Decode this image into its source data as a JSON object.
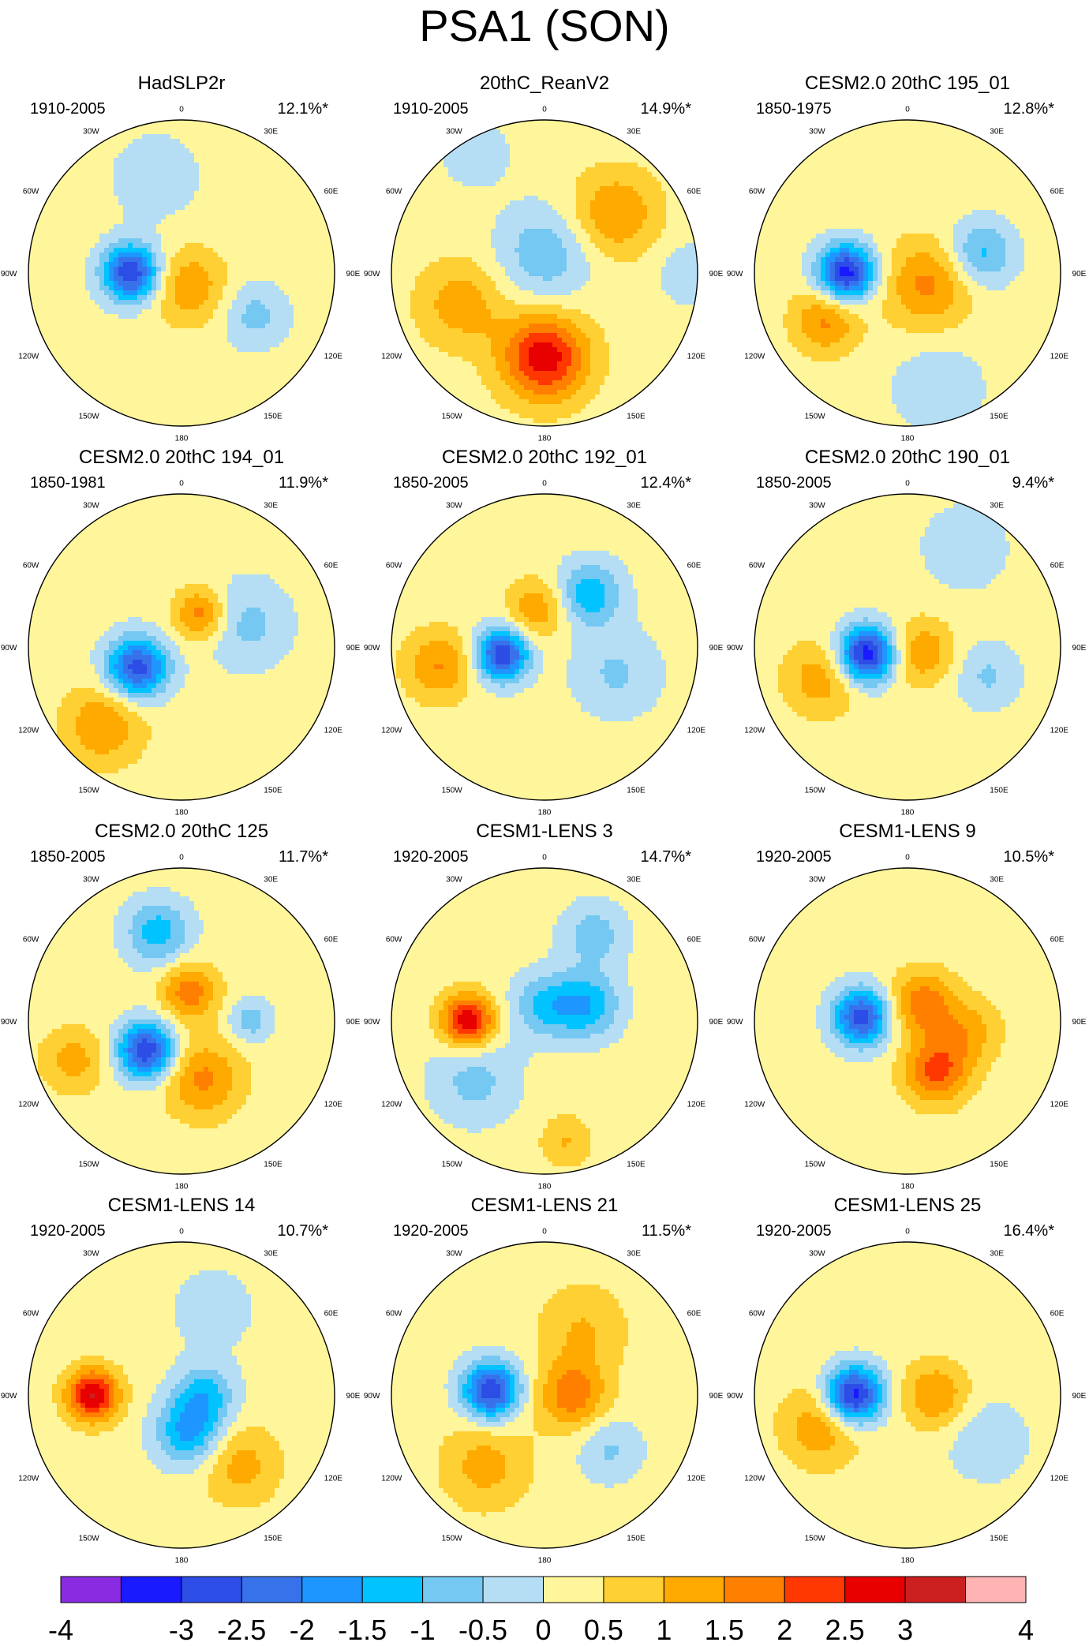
{
  "title": "PSA1 (SON)",
  "panels": [
    {
      "title": "HadSLP2r",
      "years": "1910-2005",
      "pct": "12.1%*"
    },
    {
      "title": "20thC_ReanV2",
      "years": "1910-2005",
      "pct": "14.9%*"
    },
    {
      "title": "CESM2.0 20thC 195_01",
      "years": "1850-1975",
      "pct": "12.8%*"
    },
    {
      "title": "CESM2.0 20thC 194_01",
      "years": "1850-1981",
      "pct": "11.9%*"
    },
    {
      "title": "CESM2.0 20thC 192_01",
      "years": "1850-2005",
      "pct": "12.4%*"
    },
    {
      "title": "CESM2.0 20thC 190_01",
      "years": "1850-2005",
      "pct": "9.4%*"
    },
    {
      "title": "CESM2.0 20thC 125",
      "years": "1850-2005",
      "pct": "11.7%*"
    },
    {
      "title": "CESM1-LENS 3",
      "years": "1920-2005",
      "pct": "14.7%*"
    },
    {
      "title": "CESM1-LENS 9",
      "years": "1920-2005",
      "pct": "10.5%*"
    },
    {
      "title": "CESM1-LENS 14",
      "years": "1920-2005",
      "pct": "10.7%*"
    },
    {
      "title": "CESM1-LENS 21",
      "years": "1920-2005",
      "pct": "11.5%*"
    },
    {
      "title": "CESM1-LENS 25",
      "years": "1920-2005",
      "pct": "16.4%*"
    }
  ],
  "lon_labels": [
    "0",
    "30E",
    "60E",
    "90E",
    "120E",
    "150E",
    "180",
    "150W",
    "120W",
    "90W",
    "60W",
    "30W"
  ],
  "chart_data": {
    "type": "heatmap",
    "projection": "south-polar-stereographic",
    "title": "PSA1 (SON)",
    "colorbar": {
      "levels": [
        -4,
        -3.5,
        -3,
        -2.5,
        -2,
        -1.5,
        -1,
        -0.5,
        0,
        0.5,
        1,
        1.5,
        2,
        2.5,
        3,
        3.5,
        4
      ],
      "tick_labels": [
        "-4",
        "-3",
        "-2.5",
        "-2",
        "-1.5",
        "-1",
        "-0.5",
        "0",
        "0.5",
        "1",
        "1.5",
        "2",
        "2.5",
        "3",
        "4"
      ],
      "colors": [
        "#8a2be2",
        "#1a1aff",
        "#2c4de6",
        "#3872ea",
        "#1e96ff",
        "#00c3ff",
        "#74c8f2",
        "#b5def5",
        "#fff59a",
        "#ffd033",
        "#ffaa00",
        "#ff8000",
        "#ff3700",
        "#e80000",
        "#cc1f1f",
        "#ffb3b3"
      ]
    },
    "anomaly_centers": [
      [
        {
          "lon": -90,
          "r": 0.33,
          "v": -3.2,
          "s": 0.13
        },
        {
          "lon": 150,
          "r": 0.1,
          "v": 1.2,
          "s": 0.17
        },
        {
          "lon": 120,
          "r": 0.55,
          "v": -0.9,
          "s": 0.15
        },
        {
          "lon": -15,
          "r": 0.65,
          "v": -0.5,
          "s": 0.22
        }
      ],
      [
        {
          "lon": 0,
          "r": 0.12,
          "v": -1.1,
          "s": 0.22
        },
        {
          "lon": 180,
          "r": 0.55,
          "v": 2.6,
          "s": 0.2
        },
        {
          "lon": -110,
          "r": 0.58,
          "v": 1.1,
          "s": 0.2
        },
        {
          "lon": 50,
          "r": 0.6,
          "v": 1.3,
          "s": 0.2
        },
        {
          "lon": -30,
          "r": 0.9,
          "v": -0.6,
          "s": 0.15
        },
        {
          "lon": 90,
          "r": 0.95,
          "v": -0.6,
          "s": 0.15
        }
      ],
      [
        {
          "lon": -90,
          "r": 0.4,
          "v": -3.5,
          "s": 0.13
        },
        {
          "lon": 120,
          "r": 0.15,
          "v": 1.4,
          "s": 0.2
        },
        {
          "lon": -120,
          "r": 0.62,
          "v": 1.4,
          "s": 0.15
        },
        {
          "lon": 75,
          "r": 0.5,
          "v": -1.4,
          "s": 0.15
        },
        {
          "lon": 165,
          "r": 0.78,
          "v": -0.7,
          "s": 0.2
        }
      ],
      [
        {
          "lon": -115,
          "r": 0.32,
          "v": -3.0,
          "s": 0.14
        },
        {
          "lon": 30,
          "r": 0.25,
          "v": 1.6,
          "s": 0.12
        },
        {
          "lon": -135,
          "r": 0.72,
          "v": 1.3,
          "s": 0.18
        },
        {
          "lon": 70,
          "r": 0.45,
          "v": -0.9,
          "s": 0.2
        }
      ],
      [
        {
          "lon": -100,
          "r": 0.28,
          "v": -3.2,
          "s": 0.12
        },
        {
          "lon": 40,
          "r": 0.45,
          "v": -1.6,
          "s": 0.15
        },
        {
          "lon": -100,
          "r": 0.7,
          "v": 1.3,
          "s": 0.16
        },
        {
          "lon": -10,
          "r": 0.25,
          "v": 1.2,
          "s": 0.14
        },
        {
          "lon": 110,
          "r": 0.5,
          "v": -0.8,
          "s": 0.2
        }
      ],
      [
        {
          "lon": -100,
          "r": 0.27,
          "v": -3.6,
          "s": 0.13
        },
        {
          "lon": 110,
          "r": 0.1,
          "v": 1.2,
          "s": 0.15
        },
        {
          "lon": -110,
          "r": 0.6,
          "v": 1.1,
          "s": 0.17
        },
        {
          "lon": 110,
          "r": 0.55,
          "v": -0.8,
          "s": 0.15
        },
        {
          "lon": 30,
          "r": 0.75,
          "v": -0.6,
          "s": 0.2
        }
      ],
      [
        {
          "lon": -130,
          "r": 0.3,
          "v": -3.2,
          "s": 0.13
        },
        {
          "lon": 15,
          "r": 0.2,
          "v": 1.6,
          "s": 0.13
        },
        {
          "lon": -15,
          "r": 0.6,
          "v": -1.5,
          "s": 0.15
        },
        {
          "lon": 90,
          "r": 0.45,
          "v": -1.0,
          "s": 0.1
        },
        {
          "lon": 160,
          "r": 0.4,
          "v": 1.4,
          "s": 0.18
        },
        {
          "lon": -110,
          "r": 0.75,
          "v": 1.0,
          "s": 0.15
        }
      ],
      [
        {
          "lon": -90,
          "r": 0.5,
          "v": 2.8,
          "s": 0.12
        },
        {
          "lon": 70,
          "r": 0.3,
          "v": -1.6,
          "s": 0.15
        },
        {
          "lon": 0,
          "r": 0.1,
          "v": -1.3,
          "s": 0.15
        },
        {
          "lon": -130,
          "r": 0.6,
          "v": -0.9,
          "s": 0.2
        },
        {
          "lon": 30,
          "r": 0.65,
          "v": -1.0,
          "s": 0.15
        },
        {
          "lon": 170,
          "r": 0.8,
          "v": 0.8,
          "s": 0.12
        }
      ],
      [
        {
          "lon": -85,
          "r": 0.3,
          "v": -3.0,
          "s": 0.13
        },
        {
          "lon": 40,
          "r": 0.15,
          "v": 1.6,
          "s": 0.15
        },
        {
          "lon": 150,
          "r": 0.38,
          "v": 1.9,
          "s": 0.15
        },
        {
          "lon": 100,
          "r": 0.4,
          "v": 1.0,
          "s": 0.15
        }
      ],
      [
        {
          "lon": -90,
          "r": 0.58,
          "v": 2.8,
          "s": 0.12
        },
        {
          "lon": 170,
          "r": 0.25,
          "v": -1.8,
          "s": 0.15
        },
        {
          "lon": 90,
          "r": 0.15,
          "v": -1.4,
          "s": 0.14
        },
        {
          "lon": 140,
          "r": 0.6,
          "v": 1.0,
          "s": 0.18
        },
        {
          "lon": 20,
          "r": 0.6,
          "v": -0.5,
          "s": 0.2
        }
      ],
      [
        {
          "lon": -85,
          "r": 0.35,
          "v": -3.2,
          "s": 0.13
        },
        {
          "lon": 90,
          "r": 0.18,
          "v": 1.6,
          "s": 0.16
        },
        {
          "lon": -140,
          "r": 0.6,
          "v": 1.0,
          "s": 0.2
        },
        {
          "lon": 30,
          "r": 0.5,
          "v": 0.8,
          "s": 0.2
        },
        {
          "lon": 130,
          "r": 0.55,
          "v": -0.8,
          "s": 0.15
        }
      ],
      [
        {
          "lon": -90,
          "r": 0.35,
          "v": -3.6,
          "s": 0.13
        },
        {
          "lon": 90,
          "r": 0.18,
          "v": 1.3,
          "s": 0.15
        },
        {
          "lon": -110,
          "r": 0.6,
          "v": 1.2,
          "s": 0.18
        },
        {
          "lon": 120,
          "r": 0.6,
          "v": -0.7,
          "s": 0.18
        }
      ]
    ]
  }
}
